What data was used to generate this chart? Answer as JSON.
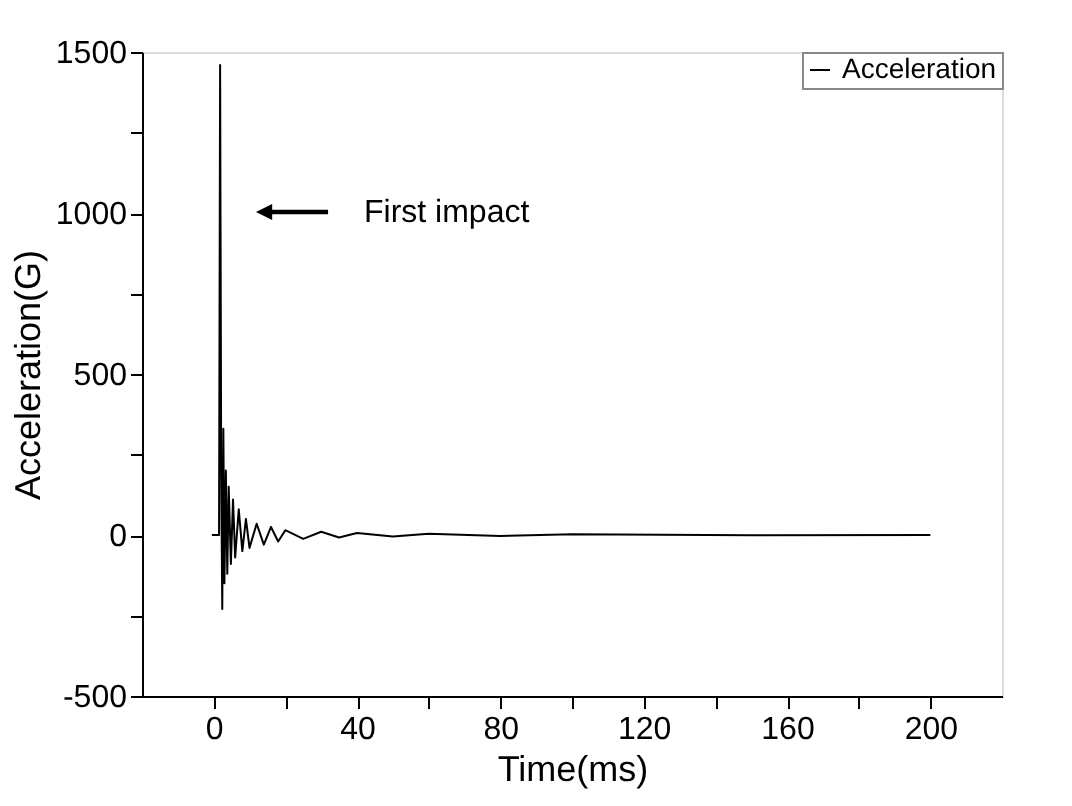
{
  "chart_data": {
    "type": "line",
    "xlabel": "Time(ms)",
    "ylabel": "Acceleration(G)",
    "xlim": [
      -20,
      220
    ],
    "ylim": [
      -500,
      1500
    ],
    "xticks": [
      0,
      {
        "value": 20,
        "label": null
      },
      40,
      {
        "value": 60,
        "label": null
      },
      80,
      {
        "value": 100,
        "label": null
      },
      120,
      {
        "value": 140,
        "label": null
      },
      160,
      {
        "value": 180,
        "label": null
      },
      200
    ],
    "yticks": [
      -500,
      {
        "value": -250,
        "label": null
      },
      0,
      {
        "value": 250,
        "label": null
      },
      500,
      {
        "value": 750,
        "label": null
      },
      1000,
      {
        "value": 1250,
        "label": null
      },
      1500
    ],
    "series": [
      {
        "name": "Acceleration",
        "color": "#000000",
        "x": [
          -0.5,
          1.5,
          1.8,
          2.1,
          2.4,
          2.7,
          3.0,
          3.4,
          3.8,
          4.2,
          4.8,
          5.4,
          6,
          7,
          8,
          9,
          10,
          12,
          14,
          16,
          18,
          20,
          25,
          30,
          35,
          40,
          50,
          60,
          80,
          100,
          150,
          200
        ],
        "values": [
          0,
          0,
          1460,
          200,
          -230,
          330,
          -150,
          200,
          -120,
          150,
          -90,
          110,
          -70,
          80,
          -50,
          50,
          -40,
          35,
          -30,
          25,
          -20,
          15,
          -12,
          10,
          -8,
          6,
          -5,
          4,
          -3,
          2,
          -1,
          0
        ]
      }
    ],
    "annotations": [
      "First impact"
    ],
    "legend": "top right",
    "grid": false
  }
}
